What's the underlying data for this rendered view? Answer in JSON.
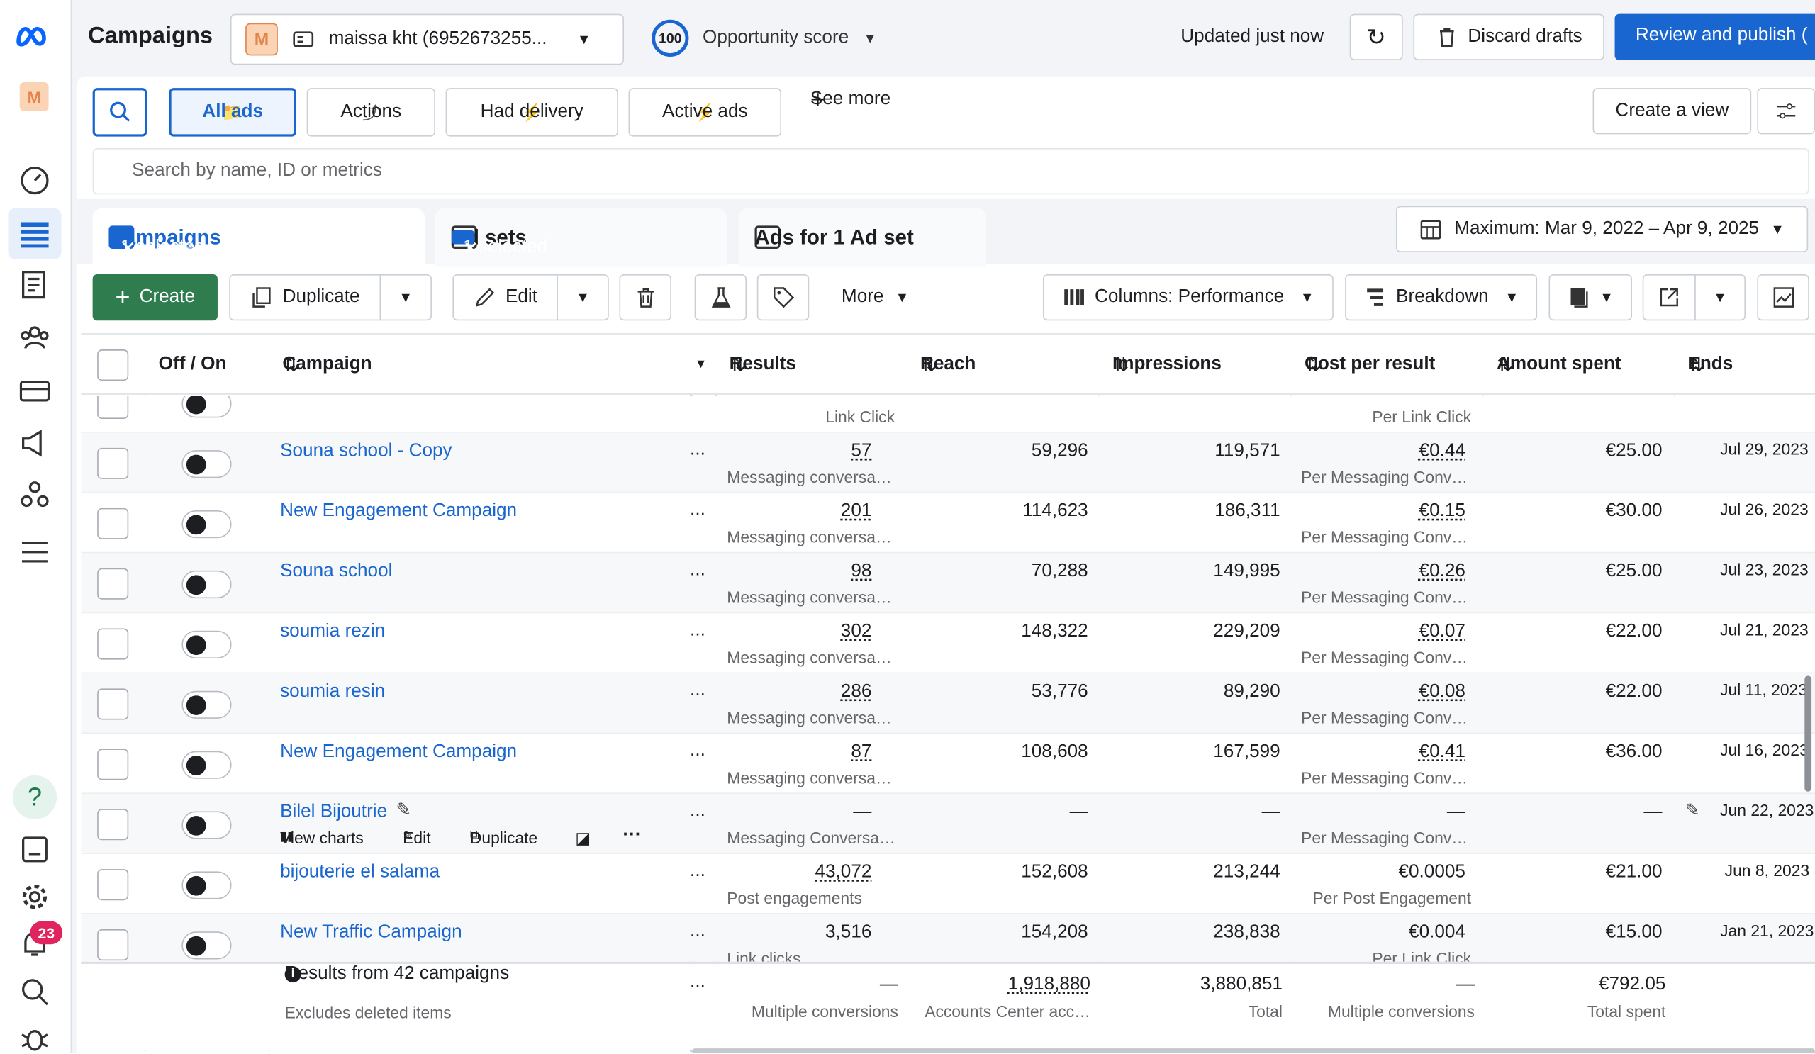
{
  "header": {
    "title": "Campaigns",
    "account_initial": "M",
    "account": "maissa kht (6952673255...",
    "score": "100",
    "score_label": "Opportunity score",
    "updated": "Updated just now",
    "discard": "Discard drafts",
    "publish": "Review and publish ("
  },
  "sidebar": {
    "account_initial": "M",
    "notifications": "23"
  },
  "filters": {
    "items": [
      "All ads",
      "Actions",
      "Had delivery",
      "Active ads",
      "See more"
    ],
    "create_view": "Create a view",
    "search_placeholder": "Search by name, ID or metrics"
  },
  "tabs": [
    {
      "label": "Campaigns",
      "selected": "1 selected"
    },
    {
      "label": "Ad sets",
      "selected": "1 selected"
    },
    {
      "label": "Ads for 1 Ad set"
    }
  ],
  "date_range": "Maximum: Mar 9, 2022 – Apr 9, 2025",
  "toolbar": {
    "create": "Create",
    "duplicate": "Duplicate",
    "edit": "Edit",
    "more": "More",
    "columns": "Columns: Performance",
    "breakdown": "Breakdown"
  },
  "table": {
    "columns": [
      "Off / On",
      "Campaign",
      "Results",
      "Reach",
      "Impressions",
      "Cost per result",
      "Amount spent",
      "Ends"
    ],
    "partial_row": {
      "results_sub": "Link Click",
      "cost_sub": "Per Link Click"
    },
    "rows": [
      {
        "name": "Souna school - Copy",
        "results": "57",
        "results_sub": "Messaging conversa…",
        "reach": "59,296",
        "impressions": "119,571",
        "cost": "€0.44",
        "cost_sub": "Per Messaging Conv…",
        "spent": "€25.00",
        "ends": "Jul 29, 2023"
      },
      {
        "name": "New Engagement Campaign",
        "results": "201",
        "results_sub": "Messaging conversa…",
        "reach": "114,623",
        "impressions": "186,311",
        "cost": "€0.15",
        "cost_sub": "Per Messaging Conv…",
        "spent": "€30.00",
        "ends": "Jul 26, 2023"
      },
      {
        "name": "Souna school",
        "results": "98",
        "results_sub": "Messaging conversa…",
        "reach": "70,288",
        "impressions": "149,995",
        "cost": "€0.26",
        "cost_sub": "Per Messaging Conv…",
        "spent": "€25.00",
        "ends": "Jul 23, 2023"
      },
      {
        "name": "soumia rezin",
        "results": "302",
        "results_sub": "Messaging conversa…",
        "reach": "148,322",
        "impressions": "229,209",
        "cost": "€0.07",
        "cost_sub": "Per Messaging Conv…",
        "spent": "€22.00",
        "ends": "Jul 21, 2023"
      },
      {
        "name": "soumia resin",
        "results": "286",
        "results_sub": "Messaging conversa…",
        "reach": "53,776",
        "impressions": "89,290",
        "cost": "€0.08",
        "cost_sub": "Per Messaging Conv…",
        "spent": "€22.00",
        "ends": "Jul 11, 2023"
      },
      {
        "name": "New Engagement Campaign",
        "results": "87",
        "results_sub": "Messaging conversa…",
        "reach": "108,608",
        "impressions": "167,599",
        "cost": "€0.41",
        "cost_sub": "Per Messaging Conv…",
        "spent": "€36.00",
        "ends": "Jul 16, 2023"
      },
      {
        "name": "Bilel Bijoutrie",
        "results": "—",
        "results_sub": "Messaging Conversa…",
        "reach": "—",
        "impressions": "—",
        "cost": "—",
        "cost_sub": "Per Messaging Conv…",
        "spent": "—",
        "ends": "Jun 22, 2023"
      },
      {
        "name": "bijouterie el salama",
        "results": "43,072",
        "results_sub": "Post engagements",
        "reach": "152,608",
        "impressions": "213,244",
        "cost": "€0.0005",
        "cost_sub": "Per Post Engagement",
        "spent": "€21.00",
        "ends": "Jun 8, 2023"
      },
      {
        "name": "New Traffic Campaign",
        "results": "3,516",
        "results_sub": "Link clicks",
        "reach": "154,208",
        "impressions": "238,838",
        "cost": "€0.004",
        "cost_sub": "Per Link Click",
        "spent": "€15.00",
        "ends": "Jan 21, 2023"
      }
    ],
    "row_actions": [
      "View charts",
      "Edit",
      "Duplicate"
    ],
    "footer": {
      "title": "Results from 42 campaigns",
      "subtitle": "Excludes deleted items",
      "results": "—",
      "results_sub": "Multiple conversions",
      "reach": "1,918,880",
      "reach_sub": "Accounts Center acc…",
      "impressions": "3,880,851",
      "impressions_sub": "Total",
      "cost": "—",
      "cost_sub": "Multiple conversions",
      "spent": "€792.05",
      "spent_sub": "Total spent"
    }
  }
}
